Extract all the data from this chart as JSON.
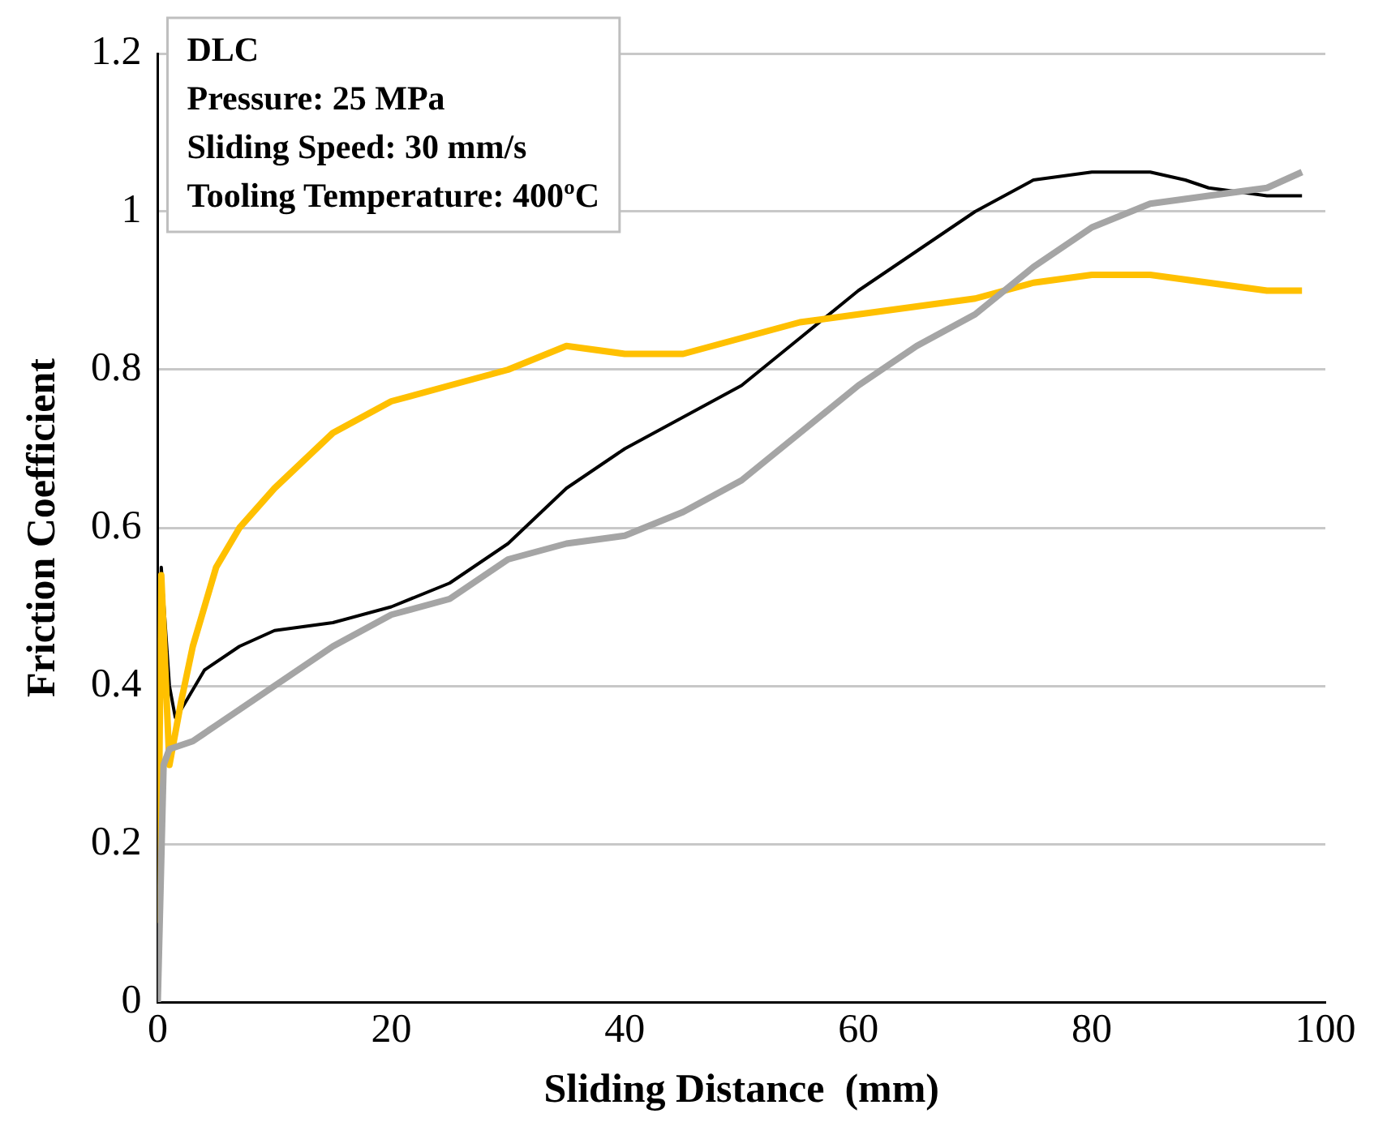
{
  "chart_data": {
    "type": "line",
    "xlabel": "Sliding Distance  (mm)",
    "ylabel": "Friction Coefficient",
    "annotations": [
      "DLC",
      "Pressure: 25 MPa",
      "Sliding Speed: 30 mm/s",
      "Tooling Temperature: 400ºC"
    ],
    "xlim": [
      0,
      100
    ],
    "xticks": [
      0,
      20,
      40,
      60,
      80,
      100
    ],
    "ylim": [
      0,
      1.2
    ],
    "yticks": [
      0,
      0.2,
      0.4,
      0.6,
      0.8,
      1,
      1.2
    ],
    "grid": "y",
    "legend": false,
    "marker": "none",
    "line_style": "solid",
    "series": [
      {
        "color": "#a5a5a5",
        "x": [
          0,
          0.5,
          1,
          3,
          5,
          10,
          15,
          20,
          25,
          30,
          35,
          40,
          45,
          50,
          55,
          60,
          65,
          70,
          75,
          80,
          85,
          90,
          95,
          98
        ],
        "values": [
          0,
          0.3,
          0.32,
          0.33,
          0.35,
          0.4,
          0.45,
          0.49,
          0.51,
          0.56,
          0.58,
          0.59,
          0.62,
          0.66,
          0.72,
          0.78,
          0.83,
          0.87,
          0.93,
          0.98,
          1.01,
          1.02,
          1.03,
          1.05
        ]
      },
      {
        "color": "#ffc000",
        "x": [
          0,
          0.3,
          1,
          2,
          3,
          5,
          7,
          10,
          15,
          20,
          25,
          30,
          35,
          40,
          45,
          50,
          55,
          60,
          65,
          70,
          75,
          80,
          85,
          90,
          95,
          98
        ],
        "values": [
          0.1,
          0.54,
          0.3,
          0.38,
          0.45,
          0.55,
          0.6,
          0.65,
          0.72,
          0.76,
          0.78,
          0.8,
          0.83,
          0.82,
          0.82,
          0.84,
          0.86,
          0.87,
          0.88,
          0.89,
          0.91,
          0.92,
          0.92,
          0.91,
          0.9,
          0.9
        ]
      },
      {
        "color": "#000000",
        "x": [
          0,
          0.3,
          1,
          1.5,
          2,
          4,
          7,
          10,
          15,
          20,
          25,
          30,
          35,
          40,
          45,
          50,
          55,
          60,
          65,
          70,
          75,
          80,
          85,
          88,
          90,
          95,
          98
        ],
        "values": [
          0,
          0.55,
          0.4,
          0.36,
          0.37,
          0.42,
          0.45,
          0.47,
          0.48,
          0.5,
          0.53,
          0.58,
          0.65,
          0.7,
          0.74,
          0.78,
          0.84,
          0.9,
          0.95,
          1,
          1.04,
          1.05,
          1.05,
          1.04,
          1.03,
          1.02,
          1.02
        ]
      }
    ]
  }
}
